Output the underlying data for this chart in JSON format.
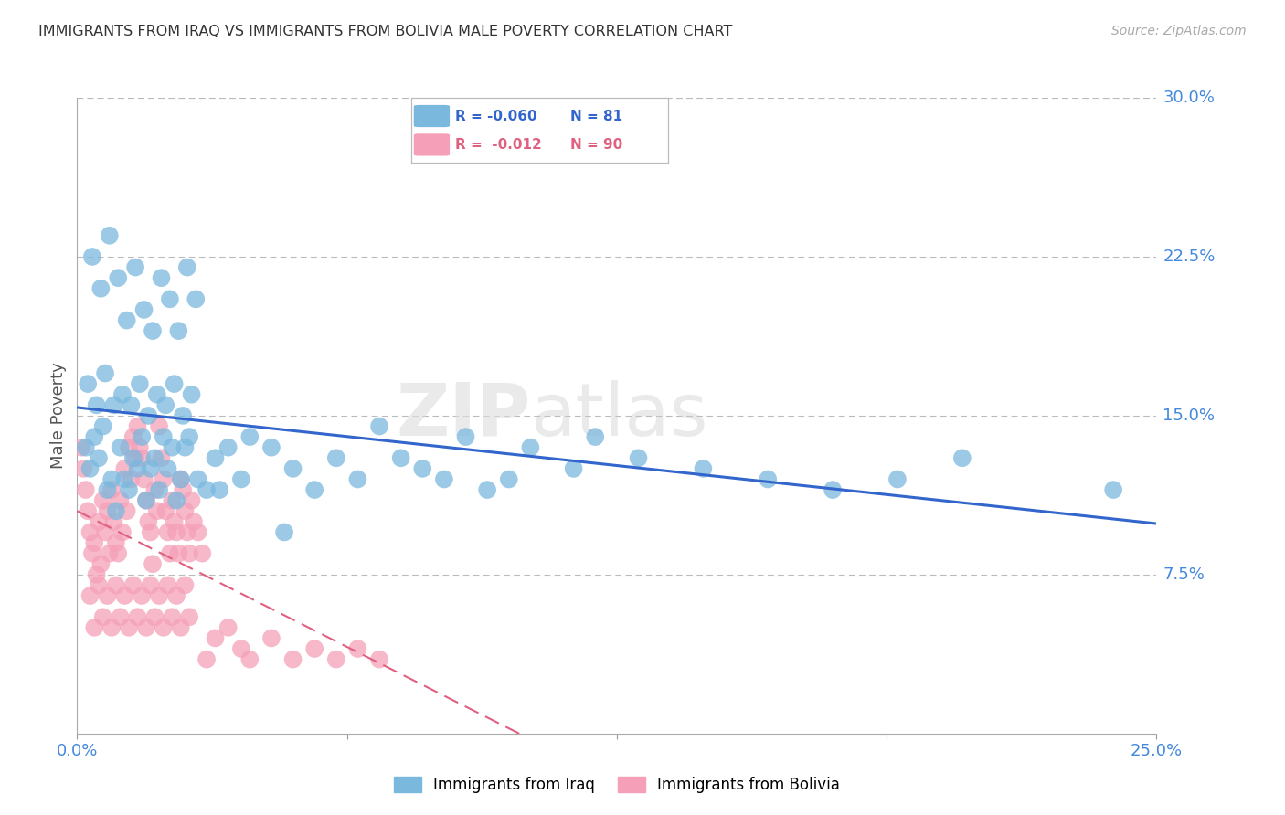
{
  "title": "IMMIGRANTS FROM IRAQ VS IMMIGRANTS FROM BOLIVIA MALE POVERTY CORRELATION CHART",
  "source": "Source: ZipAtlas.com",
  "ylabel": "Male Poverty",
  "yticks": [
    7.5,
    15.0,
    22.5,
    30.0
  ],
  "ytick_labels": [
    "7.5%",
    "15.0%",
    "22.5%",
    "30.0%"
  ],
  "xlim": [
    0.0,
    25.0
  ],
  "ylim": [
    0.0,
    30.0
  ],
  "iraq_R": "-0.060",
  "iraq_N": "81",
  "bolivia_R": "-0.012",
  "bolivia_N": "90",
  "iraq_color": "#7ab8de",
  "bolivia_color": "#f5a0b8",
  "iraq_line_color": "#3366cc",
  "bolivia_line_color": "#e06080",
  "background_color": "#ffffff",
  "grid_color": "#bbbbbb",
  "tick_label_color": "#4488dd",
  "title_color": "#333333",
  "watermark1": "ZIP",
  "watermark2": "atlas",
  "iraq_x": [
    0.2,
    0.3,
    0.4,
    0.5,
    0.6,
    0.7,
    0.8,
    0.9,
    1.0,
    1.1,
    1.2,
    1.3,
    1.4,
    1.5,
    1.6,
    1.7,
    1.8,
    1.9,
    2.0,
    2.1,
    2.2,
    2.3,
    2.4,
    2.5,
    2.6,
    2.8,
    3.0,
    3.2,
    3.5,
    3.8,
    4.0,
    4.5,
    5.0,
    5.5,
    6.0,
    6.5,
    7.0,
    7.5,
    8.0,
    9.0,
    9.5,
    10.0,
    10.5,
    11.5,
    12.0,
    13.0,
    14.5,
    16.0,
    17.5,
    19.0,
    20.5,
    0.35,
    0.55,
    0.75,
    0.95,
    1.15,
    1.35,
    1.55,
    1.75,
    1.95,
    2.15,
    2.35,
    2.55,
    2.75,
    0.25,
    0.45,
    0.65,
    0.85,
    1.05,
    1.25,
    1.45,
    1.65,
    1.85,
    2.05,
    2.25,
    2.45,
    2.65,
    3.3,
    4.8,
    8.5,
    24.0
  ],
  "iraq_y": [
    13.5,
    12.5,
    14.0,
    13.0,
    14.5,
    11.5,
    12.0,
    10.5,
    13.5,
    12.0,
    11.5,
    13.0,
    12.5,
    14.0,
    11.0,
    12.5,
    13.0,
    11.5,
    14.0,
    12.5,
    13.5,
    11.0,
    12.0,
    13.5,
    14.0,
    12.0,
    11.5,
    13.0,
    13.5,
    12.0,
    14.0,
    13.5,
    12.5,
    11.5,
    13.0,
    12.0,
    14.5,
    13.0,
    12.5,
    14.0,
    11.5,
    12.0,
    13.5,
    12.5,
    14.0,
    13.0,
    12.5,
    12.0,
    11.5,
    12.0,
    13.0,
    22.5,
    21.0,
    23.5,
    21.5,
    19.5,
    22.0,
    20.0,
    19.0,
    21.5,
    20.5,
    19.0,
    22.0,
    20.5,
    16.5,
    15.5,
    17.0,
    15.5,
    16.0,
    15.5,
    16.5,
    15.0,
    16.0,
    15.5,
    16.5,
    15.0,
    16.0,
    11.5,
    9.5,
    12.0,
    11.5
  ],
  "bolivia_x": [
    0.1,
    0.15,
    0.2,
    0.25,
    0.3,
    0.35,
    0.4,
    0.45,
    0.5,
    0.55,
    0.6,
    0.65,
    0.7,
    0.75,
    0.8,
    0.85,
    0.9,
    0.95,
    1.0,
    1.05,
    1.1,
    1.15,
    1.2,
    1.25,
    1.3,
    1.35,
    1.4,
    1.45,
    1.5,
    1.55,
    1.6,
    1.65,
    1.7,
    1.75,
    1.8,
    1.85,
    1.9,
    1.95,
    2.0,
    2.05,
    2.1,
    2.15,
    2.2,
    2.25,
    2.3,
    2.35,
    2.4,
    2.45,
    2.5,
    2.55,
    2.6,
    2.65,
    2.7,
    2.8,
    2.9,
    3.0,
    3.2,
    3.5,
    3.8,
    4.0,
    4.5,
    5.0,
    5.5,
    6.0,
    6.5,
    7.0,
    0.3,
    0.5,
    0.7,
    0.9,
    1.1,
    1.3,
    1.5,
    1.7,
    1.9,
    2.1,
    2.3,
    2.5,
    0.4,
    0.6,
    0.8,
    1.0,
    1.2,
    1.4,
    1.6,
    1.8,
    2.0,
    2.2,
    2.4,
    2.6
  ],
  "bolivia_y": [
    13.5,
    12.5,
    11.5,
    10.5,
    9.5,
    8.5,
    9.0,
    7.5,
    10.0,
    8.0,
    11.0,
    9.5,
    10.5,
    8.5,
    11.5,
    10.0,
    9.0,
    8.5,
    11.0,
    9.5,
    12.5,
    10.5,
    13.5,
    12.0,
    14.0,
    13.0,
    14.5,
    13.5,
    13.0,
    12.0,
    11.0,
    10.0,
    9.5,
    8.0,
    11.5,
    10.5,
    14.5,
    13.0,
    12.0,
    10.5,
    9.5,
    8.5,
    11.0,
    10.0,
    9.5,
    8.5,
    12.0,
    11.5,
    10.5,
    9.5,
    8.5,
    11.0,
    10.0,
    9.5,
    8.5,
    3.5,
    4.5,
    5.0,
    4.0,
    3.5,
    4.5,
    3.5,
    4.0,
    3.5,
    4.0,
    3.5,
    6.5,
    7.0,
    6.5,
    7.0,
    6.5,
    7.0,
    6.5,
    7.0,
    6.5,
    7.0,
    6.5,
    7.0,
    5.0,
    5.5,
    5.0,
    5.5,
    5.0,
    5.5,
    5.0,
    5.5,
    5.0,
    5.5,
    5.0,
    5.5
  ]
}
